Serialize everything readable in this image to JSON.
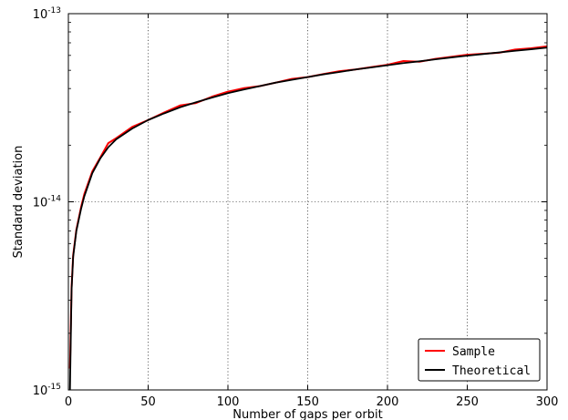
{
  "chart_data": {
    "type": "line",
    "title": "",
    "xlabel": "Number of gaps per orbit",
    "ylabel": "Standard deviation",
    "xlim": [
      0,
      300
    ],
    "ylim": [
      1e-15,
      1e-13
    ],
    "yscale": "log",
    "grid": true,
    "grid_style": "dotted",
    "legend_position": "lower-right",
    "x_ticks": [
      0,
      50,
      100,
      150,
      200,
      250,
      300
    ],
    "x_tick_labels": [
      "0",
      "50",
      "100",
      "150",
      "200",
      "250",
      "300"
    ],
    "y_ticks": [
      {
        "value": 1e-15,
        "base": "10",
        "exp": "-15"
      },
      {
        "value": 1e-14,
        "base": "10",
        "exp": "-14"
      },
      {
        "value": 1e-13,
        "base": "10",
        "exp": "-13"
      }
    ],
    "series": [
      {
        "name": "Sample",
        "color": "#ff0000",
        "x": [
          1,
          2,
          3,
          5,
          8,
          10,
          15,
          20,
          25,
          30,
          40,
          50,
          60,
          70,
          80,
          90,
          100,
          110,
          120,
          130,
          140,
          150,
          160,
          170,
          180,
          190,
          200,
          210,
          220,
          230,
          240,
          250,
          260,
          270,
          280,
          290,
          300
        ],
        "values": [
          1.3e-15,
          3.5e-15,
          5.2e-15,
          7.1e-15,
          9.4e-15,
          1.1e-14,
          1.45e-14,
          1.72e-14,
          2.05e-14,
          2.18e-14,
          2.5e-14,
          2.72e-14,
          2.98e-14,
          3.25e-14,
          3.35e-14,
          3.62e-14,
          3.85e-14,
          4.02e-14,
          4.12e-14,
          4.3e-14,
          4.5e-14,
          4.6e-14,
          4.78e-14,
          4.95e-14,
          5.05e-14,
          5.2e-14,
          5.35e-14,
          5.6e-14,
          5.55e-14,
          5.75e-14,
          5.9e-14,
          6.05e-14,
          6.12e-14,
          6.2e-14,
          6.45e-14,
          6.55e-14,
          6.7e-14
        ]
      },
      {
        "name": "Theoretical",
        "color": "#000000",
        "x": [
          1,
          2,
          3,
          5,
          8,
          10,
          15,
          20,
          25,
          30,
          40,
          50,
          60,
          70,
          80,
          90,
          100,
          110,
          120,
          130,
          140,
          150,
          160,
          170,
          180,
          190,
          200,
          210,
          220,
          230,
          240,
          250,
          260,
          270,
          280,
          290,
          300
        ],
        "values": [
          1e-15,
          3.4e-15,
          5.1e-15,
          7e-15,
          9.2e-15,
          1.07e-14,
          1.42e-14,
          1.7e-14,
          1.95e-14,
          2.15e-14,
          2.45e-14,
          2.72e-14,
          2.95e-14,
          3.18e-14,
          3.38e-14,
          3.58e-14,
          3.78e-14,
          3.95e-14,
          4.12e-14,
          4.3e-14,
          4.45e-14,
          4.6e-14,
          4.76e-14,
          4.9e-14,
          5.05e-14,
          5.18e-14,
          5.32e-14,
          5.46e-14,
          5.58e-14,
          5.72e-14,
          5.85e-14,
          5.98e-14,
          6.1e-14,
          6.22e-14,
          6.35e-14,
          6.47e-14,
          6.6e-14
        ]
      }
    ]
  }
}
